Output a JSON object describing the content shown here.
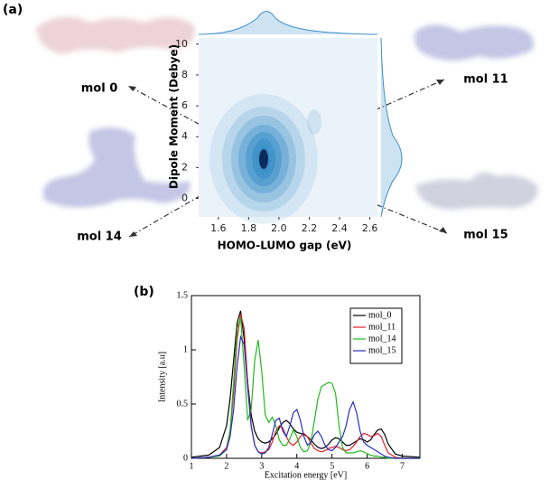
{
  "panels": [
    "(a)",
    "(b)"
  ],
  "chart_data": [
    {
      "type": "kde",
      "xlabel": "HOMO-LUMO gap (eV)",
      "ylabel": "Dipole Moment (Debye)",
      "xlim": [
        1.47,
        2.65
      ],
      "ylim": [
        -1.2,
        10.4
      ],
      "xticks": [
        1.6,
        1.8,
        {
          "value": 2,
          "label": "2.0"
        },
        2.2,
        2.4,
        2.6
      ],
      "yticks": [
        0,
        2,
        4,
        6,
        8,
        10
      ],
      "color": "#3a8fc8",
      "annotations": [
        "mol 0",
        "mol 11",
        "mol 14",
        "mol 15"
      ]
    },
    {
      "type": "line",
      "xlabel": "Excitation energy [eV]",
      "ylabel": "Intensity [a.u]",
      "xlim": [
        1,
        7.5
      ],
      "ylim": [
        0,
        1.5
      ],
      "xticks": [
        1,
        2,
        3,
        4,
        5,
        6,
        7
      ],
      "yticks": [
        0,
        0.5,
        1,
        1.5
      ],
      "legend": "upper right",
      "x": [
        1,
        1.5,
        1.8,
        2.0,
        2.1,
        2.2,
        2.3,
        2.4,
        2.5,
        2.6,
        2.7,
        2.8,
        2.9,
        3.0,
        3.1,
        3.2,
        3.3,
        3.4,
        3.5,
        3.6,
        3.7,
        3.8,
        3.9,
        4.0,
        4.1,
        4.2,
        4.3,
        4.4,
        4.5,
        4.6,
        4.7,
        4.8,
        4.9,
        5.0,
        5.1,
        5.2,
        5.3,
        5.4,
        5.5,
        5.6,
        5.7,
        5.8,
        5.9,
        6.0,
        6.1,
        6.2,
        6.3,
        6.4,
        6.5,
        6.6,
        6.8,
        7.0,
        7.5
      ],
      "series": [
        {
          "name": "mol_0",
          "color": "#000000",
          "values": [
            0.01,
            0.03,
            0.1,
            0.3,
            0.55,
            0.9,
            1.25,
            1.36,
            1.1,
            0.7,
            0.4,
            0.25,
            0.18,
            0.15,
            0.14,
            0.15,
            0.18,
            0.22,
            0.28,
            0.33,
            0.35,
            0.32,
            0.27,
            0.24,
            0.23,
            0.22,
            0.2,
            0.17,
            0.13,
            0.1,
            0.09,
            0.1,
            0.13,
            0.17,
            0.19,
            0.18,
            0.15,
            0.12,
            0.12,
            0.14,
            0.16,
            0.18,
            0.17,
            0.15,
            0.17,
            0.22,
            0.26,
            0.27,
            0.22,
            0.13,
            0.04,
            0.02,
            0.01
          ]
        },
        {
          "name": "mol_11",
          "color": "#e0202a",
          "values": [
            0,
            0.01,
            0.03,
            0.1,
            0.25,
            0.6,
            1.1,
            1.33,
            1.2,
            0.7,
            0.3,
            0.12,
            0.06,
            0.05,
            0.06,
            0.08,
            0.15,
            0.25,
            0.3,
            0.28,
            0.2,
            0.14,
            0.12,
            0.15,
            0.2,
            0.23,
            0.2,
            0.14,
            0.09,
            0.07,
            0.06,
            0.07,
            0.09,
            0.1,
            0.11,
            0.1,
            0.08,
            0.07,
            0.08,
            0.11,
            0.15,
            0.2,
            0.23,
            0.22,
            0.2,
            0.21,
            0.23,
            0.2,
            0.12,
            0.05,
            0.01,
            0,
            0
          ]
        },
        {
          "name": "mol_14",
          "color": "#22b81e",
          "values": [
            0,
            0.01,
            0.02,
            0.08,
            0.25,
            0.7,
            1.2,
            1.3,
            0.85,
            0.35,
            0.45,
            0.9,
            1.09,
            0.8,
            0.4,
            0.33,
            0.38,
            0.3,
            0.17,
            0.12,
            0.12,
            0.18,
            0.26,
            0.2,
            0.1,
            0.06,
            0.07,
            0.15,
            0.35,
            0.55,
            0.66,
            0.68,
            0.7,
            0.69,
            0.6,
            0.3,
            0.1,
            0.05,
            0.05,
            0.05,
            0.06,
            0.07,
            0.06,
            0.04,
            0.03,
            0.02,
            0.02,
            0.01,
            0.01,
            0,
            0,
            0,
            0
          ]
        },
        {
          "name": "mol_15",
          "color": "#2630b8",
          "values": [
            0,
            0.01,
            0.03,
            0.08,
            0.2,
            0.45,
            0.85,
            1.12,
            1.05,
            0.65,
            0.3,
            0.12,
            0.06,
            0.04,
            0.05,
            0.1,
            0.22,
            0.35,
            0.37,
            0.25,
            0.2,
            0.3,
            0.42,
            0.45,
            0.35,
            0.2,
            0.12,
            0.15,
            0.22,
            0.25,
            0.2,
            0.12,
            0.08,
            0.07,
            0.1,
            0.15,
            0.2,
            0.3,
            0.45,
            0.52,
            0.42,
            0.25,
            0.15,
            0.12,
            0.1,
            0.08,
            0.06,
            0.04,
            0.02,
            0.01,
            0,
            0,
            0
          ]
        }
      ]
    }
  ]
}
